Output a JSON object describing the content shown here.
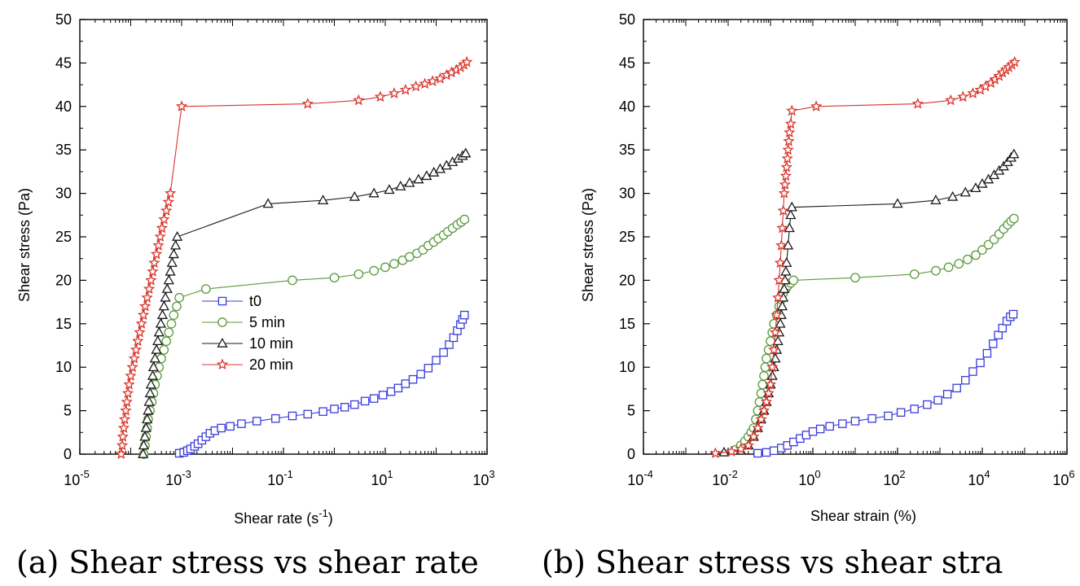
{
  "chart_data": [
    {
      "type": "line",
      "caption": "(a) Shear stress vs shear rate",
      "xlabel": "Shear rate (s",
      "xlabel_sup": "-1",
      "xlabel_end": ")",
      "ylabel": "Shear stress (Pa)",
      "xscale": "log",
      "xlim": [
        1e-05,
        1000
      ],
      "ylim": [
        0,
        50
      ],
      "xticks": [
        {
          "value": 1e-05,
          "base": "10",
          "exp": "-5"
        },
        {
          "value": 0.001,
          "base": "10",
          "exp": "-3"
        },
        {
          "value": 0.1,
          "base": "10",
          "exp": "-1"
        },
        {
          "value": 10,
          "base": "10",
          "exp": "1"
        },
        {
          "value": 1000,
          "base": "10",
          "exp": "3"
        }
      ],
      "yticks": [
        "0",
        "5",
        "10",
        "15",
        "20",
        "25",
        "30",
        "35",
        "40",
        "45",
        "50"
      ],
      "legend": {
        "position": "middle-left",
        "entries": [
          "t0",
          "5 min",
          "10 min",
          "20 min"
        ]
      },
      "series": [
        {
          "name": "t0",
          "color": "#3b3bdc",
          "marker": "square",
          "x": [
            0.0009,
            0.0011,
            0.0013,
            0.0015,
            0.0018,
            0.0021,
            0.0025,
            0.003,
            0.0036,
            0.0045,
            0.006,
            0.009,
            0.015,
            0.03,
            0.07,
            0.15,
            0.3,
            0.6,
            1,
            1.6,
            2.5,
            4,
            6,
            9,
            13,
            18,
            25,
            35,
            50,
            70,
            100,
            140,
            180,
            220,
            260,
            300,
            330,
            360
          ],
          "y": [
            0.1,
            0.2,
            0.4,
            0.6,
            0.9,
            1.2,
            1.6,
            2.0,
            2.4,
            2.7,
            3.0,
            3.2,
            3.5,
            3.8,
            4.1,
            4.4,
            4.6,
            4.9,
            5.2,
            5.4,
            5.7,
            6.1,
            6.4,
            6.8,
            7.2,
            7.6,
            8.1,
            8.6,
            9.2,
            9.9,
            10.8,
            11.7,
            12.6,
            13.4,
            14.2,
            14.9,
            15.5,
            16.0
          ]
        },
        {
          "name": "5 min",
          "color": "#5a9a3c",
          "marker": "circle",
          "x": [
            0.00018,
            0.00019,
            0.0002,
            0.00021,
            0.00022,
            0.00024,
            0.00026,
            0.00028,
            0.0003,
            0.00033,
            0.00036,
            0.0004,
            0.00045,
            0.0005,
            0.00056,
            0.00063,
            0.0007,
            0.0008,
            0.0009,
            0.003,
            0.15,
            1,
            3,
            6,
            10,
            15,
            22,
            30,
            42,
            55,
            70,
            90,
            110,
            140,
            170,
            210,
            260,
            310,
            360
          ],
          "y": [
            0,
            1,
            2,
            3,
            4,
            5,
            6,
            7,
            8,
            9,
            10,
            11,
            12,
            13,
            14,
            15,
            16,
            17,
            18,
            19,
            20,
            20.3,
            20.7,
            21.1,
            21.5,
            21.9,
            22.3,
            22.7,
            23.1,
            23.5,
            24.0,
            24.4,
            24.8,
            25.2,
            25.6,
            26.0,
            26.4,
            26.7,
            27.0
          ]
        },
        {
          "name": "10 min",
          "color": "#1a1a1a",
          "marker": "triangle",
          "x": [
            0.000175,
            0.00018,
            0.00019,
            0.0002,
            0.00021,
            0.00022,
            0.00023,
            0.00024,
            0.00025,
            0.00027,
            0.00028,
            0.0003,
            0.00032,
            0.00034,
            0.00036,
            0.00039,
            0.00042,
            0.00045,
            0.00048,
            0.00052,
            0.00056,
            0.0006,
            0.00065,
            0.0007,
            0.00076,
            0.00082,
            0.05,
            0.6,
            2.5,
            6,
            12,
            20,
            30,
            45,
            65,
            90,
            120,
            160,
            210,
            270,
            330,
            380
          ],
          "y": [
            0,
            1,
            2,
            3,
            4,
            5,
            6,
            7,
            8,
            9,
            10,
            11,
            12,
            13,
            14,
            15,
            16,
            17,
            18,
            19,
            20,
            21,
            22,
            23,
            24,
            25,
            28.8,
            29.2,
            29.6,
            30,
            30.4,
            30.8,
            31.2,
            31.6,
            32,
            32.4,
            32.8,
            33.2,
            33.6,
            34,
            34.3,
            34.6
          ]
        },
        {
          "name": "20 min",
          "color": "#d9342b",
          "marker": "star",
          "x": [
            6.5e-05,
            6.8e-05,
            7e-05,
            7.3e-05,
            7.6e-05,
            8e-05,
            8.4e-05,
            8.8e-05,
            9.3e-05,
            0.0001,
            0.000108,
            0.000117,
            0.000127,
            0.000138,
            0.00015,
            0.000163,
            0.000177,
            0.000192,
            0.00021,
            0.00023,
            0.00025,
            0.00027,
            0.00029,
            0.00032,
            0.00035,
            0.00038,
            0.00041,
            0.00045,
            0.0005,
            0.00055,
            0.0006,
            0.001,
            0.3,
            3,
            8,
            15,
            25,
            40,
            60,
            85,
            120,
            160,
            200,
            250,
            300,
            350,
            400
          ],
          "y": [
            0,
            1,
            2,
            3,
            4,
            5,
            6,
            7,
            8,
            9,
            10,
            11,
            12,
            13,
            14,
            15,
            16,
            17,
            18,
            19,
            20,
            21,
            22,
            23,
            24,
            25,
            26,
            27,
            28,
            29,
            30,
            40,
            40.3,
            40.7,
            41.1,
            41.5,
            41.9,
            42.3,
            42.6,
            42.9,
            43.2,
            43.6,
            43.9,
            44.2,
            44.5,
            44.8,
            45.1
          ]
        }
      ]
    },
    {
      "type": "line",
      "caption": "(b) Shear stress vs shear stra",
      "xlabel": "Shear strain (%)",
      "xlabel_sup": "",
      "xlabel_end": "",
      "ylabel": "Shear stress (Pa)",
      "xscale": "log",
      "xlim": [
        0.0001,
        1000000.0
      ],
      "ylim": [
        0,
        50
      ],
      "xticks": [
        {
          "value": 0.0001,
          "base": "10",
          "exp": "-4"
        },
        {
          "value": 0.01,
          "base": "10",
          "exp": "-2"
        },
        {
          "value": 1,
          "base": "10",
          "exp": "0"
        },
        {
          "value": 100,
          "base": "10",
          "exp": "2"
        },
        {
          "value": 10000.0,
          "base": "10",
          "exp": "4"
        },
        {
          "value": 1000000.0,
          "base": "10",
          "exp": "6"
        }
      ],
      "yticks": [
        "0",
        "5",
        "10",
        "15",
        "20",
        "25",
        "30",
        "35",
        "40",
        "45",
        "50"
      ],
      "legend": {
        "position": "none",
        "entries": []
      },
      "series": [
        {
          "name": "t0",
          "color": "#3b3bdc",
          "marker": "square",
          "x": [
            0.05,
            0.08,
            0.12,
            0.18,
            0.25,
            0.35,
            0.5,
            0.7,
            1,
            1.5,
            2.5,
            5,
            10,
            25,
            60,
            120,
            250,
            500,
            900,
            1500,
            2500,
            4000,
            6000,
            9000,
            13000,
            18000,
            24000,
            30000,
            38000,
            46000,
            54000
          ],
          "y": [
            0.1,
            0.2,
            0.4,
            0.7,
            1.0,
            1.4,
            1.8,
            2.2,
            2.6,
            2.9,
            3.2,
            3.5,
            3.8,
            4.1,
            4.4,
            4.8,
            5.2,
            5.7,
            6.2,
            6.9,
            7.6,
            8.5,
            9.5,
            10.5,
            11.6,
            12.7,
            13.7,
            14.5,
            15.3,
            15.8,
            16.1
          ]
        },
        {
          "name": "5 min",
          "color": "#5a9a3c",
          "marker": "circle",
          "x": [
            0.015,
            0.02,
            0.025,
            0.03,
            0.035,
            0.04,
            0.045,
            0.05,
            0.055,
            0.06,
            0.065,
            0.07,
            0.075,
            0.08,
            0.09,
            0.1,
            0.11,
            0.12,
            0.14,
            0.16,
            0.18,
            0.2,
            0.23,
            0.26,
            0.3,
            0.35,
            10,
            250,
            800,
            1600,
            2800,
            4500,
            7000,
            10000,
            14000,
            19000,
            25000,
            32000,
            40000,
            48000,
            56000
          ],
          "y": [
            0.5,
            1,
            1.5,
            2,
            2.5,
            3,
            4,
            5,
            6,
            7,
            8,
            9,
            10,
            11,
            12,
            13,
            14,
            15,
            16,
            17,
            17.8,
            18.5,
            19,
            19.4,
            19.7,
            20,
            20.3,
            20.7,
            21.1,
            21.5,
            21.9,
            22.4,
            22.9,
            23.5,
            24.1,
            24.7,
            25.3,
            25.9,
            26.4,
            26.8,
            27.1
          ]
        },
        {
          "name": "10 min",
          "color": "#1a1a1a",
          "marker": "triangle",
          "x": [
            0.008,
            0.02,
            0.03,
            0.04,
            0.05,
            0.06,
            0.07,
            0.08,
            0.09,
            0.1,
            0.11,
            0.12,
            0.13,
            0.14,
            0.15,
            0.16,
            0.17,
            0.18,
            0.19,
            0.2,
            0.21,
            0.22,
            0.23,
            0.24,
            0.26,
            0.28,
            0.3,
            0.32,
            100,
            800,
            2000,
            4000,
            7000,
            10000,
            14000,
            19000,
            25000,
            32000,
            40000,
            48000,
            56000
          ],
          "y": [
            0.2,
            0.4,
            1,
            2,
            3,
            4,
            5,
            6,
            7,
            8,
            9,
            10,
            11,
            12,
            13,
            14,
            15,
            16,
            17,
            18,
            19,
            20,
            21,
            22,
            24,
            26,
            27.5,
            28.4,
            28.8,
            29.2,
            29.6,
            30.1,
            30.6,
            31.1,
            31.6,
            32.1,
            32.6,
            33.1,
            33.6,
            34.1,
            34.5
          ]
        },
        {
          "name": "20 min",
          "color": "#d9342b",
          "marker": "star",
          "x": [
            0.005,
            0.012,
            0.02,
            0.03,
            0.04,
            0.05,
            0.06,
            0.07,
            0.08,
            0.09,
            0.1,
            0.11,
            0.12,
            0.13,
            0.14,
            0.15,
            0.16,
            0.17,
            0.18,
            0.19,
            0.2,
            0.21,
            0.22,
            0.23,
            0.24,
            0.25,
            0.26,
            0.27,
            0.28,
            0.3,
            0.32,
            1.2,
            300,
            1800,
            3500,
            6000,
            9000,
            12000,
            16000,
            20000,
            25000,
            30000,
            36000,
            42000,
            50000,
            58000
          ],
          "y": [
            0.1,
            0.3,
            0.6,
            1,
            2,
            3,
            4,
            5,
            6,
            7,
            8,
            10,
            12,
            14,
            16,
            18,
            20,
            22,
            24,
            26,
            28,
            30,
            31,
            32,
            33,
            34,
            35,
            36,
            37,
            38,
            39.5,
            40,
            40.3,
            40.7,
            41.1,
            41.5,
            41.9,
            42.3,
            42.7,
            43.1,
            43.5,
            43.9,
            44.2,
            44.5,
            44.8,
            45.1
          ]
        }
      ]
    }
  ]
}
